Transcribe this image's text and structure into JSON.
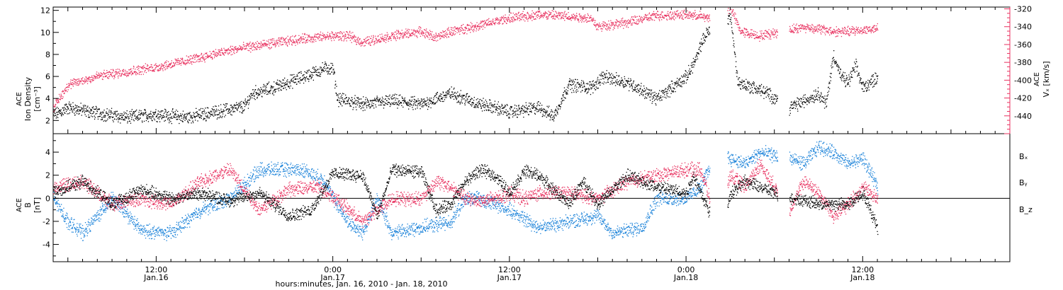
{
  "colors": {
    "black": "#000000",
    "pink": "#e8315f",
    "blue": "#1a82d9"
  },
  "chart_data": [
    {
      "type": "scatter",
      "panel": "top",
      "ylabel_left": [
        "ACE",
        "Ion Density",
        "[cm⁻³]"
      ],
      "ylabel_right": [
        "ACE",
        "Vₓ [km/s]"
      ],
      "ylim_left": [
        0.8,
        12.3
      ],
      "yticks_left": [
        2,
        4,
        6,
        8,
        10,
        12
      ],
      "ylim_right": [
        -460,
        -318
      ],
      "yticks_right": [
        -440,
        -420,
        -400,
        -380,
        -360,
        -340,
        -320
      ],
      "xlim_hours": [
        5,
        70
      ],
      "gaps_hours": [
        [
          49.6,
          50.8
        ],
        [
          54.2,
          55.0
        ]
      ],
      "series": [
        {
          "name": "Ion Density",
          "axis": "left",
          "color": "#000000",
          "x": [
            5,
            6,
            8,
            10,
            12,
            14,
            16,
            18,
            18.5,
            20,
            22,
            23.5,
            24,
            24.3,
            26,
            28,
            30,
            32,
            34,
            35,
            36,
            38,
            39,
            40,
            41.5,
            42,
            42.2,
            44,
            46,
            47,
            48,
            48.8,
            49,
            49.4,
            51,
            51.5,
            53,
            53.5,
            55,
            56,
            57,
            57.5,
            58,
            58.5,
            59,
            59.5,
            60,
            61
          ],
          "y": [
            2.5,
            3.2,
            2.7,
            2.3,
            2.6,
            2.3,
            2.8,
            3.3,
            4.5,
            5.0,
            6.0,
            6.8,
            6.7,
            4.0,
            3.5,
            3.8,
            3.5,
            4.5,
            3.5,
            3.2,
            2.8,
            3.2,
            2.4,
            5.3,
            5.0,
            5.5,
            6.0,
            5.5,
            4.0,
            5.0,
            6.0,
            8.0,
            9.0,
            10.0,
            11.5,
            5.5,
            4.8,
            4.5,
            3.2,
            3.8,
            4.5,
            3.5,
            8.0,
            6.0,
            5.5,
            7.0,
            5.0,
            6.0
          ]
        },
        {
          "name": "Vx",
          "axis": "right",
          "color": "#e8315f",
          "x": [
            5,
            6,
            8,
            10,
            12,
            14,
            16,
            18,
            20,
            22,
            24,
            25,
            26,
            28,
            30,
            31,
            32,
            34,
            36,
            38,
            40,
            41.5,
            42,
            42.5,
            44,
            46,
            48,
            49,
            49.4,
            51,
            51.3,
            51.7,
            53,
            55,
            56,
            57,
            58,
            59,
            60,
            61
          ],
          "y": [
            -430,
            -405,
            -395,
            -390,
            -385,
            -378,
            -370,
            -363,
            -358,
            -353,
            -350,
            -350,
            -357,
            -350,
            -345,
            -352,
            -345,
            -338,
            -330,
            -326,
            -328,
            -330,
            -340,
            -338,
            -335,
            -327,
            -326,
            -328,
            -330,
            -318,
            -330,
            -345,
            -350,
            -343,
            -340,
            -342,
            -345,
            -345,
            -343,
            -342
          ]
        }
      ]
    },
    {
      "type": "scatter",
      "panel": "bottom",
      "ylabel_left": [
        "ACE",
        "B",
        "[nT]"
      ],
      "ylim": [
        -5.5,
        5.6
      ],
      "yticks": [
        -4,
        -2,
        0,
        2,
        4
      ],
      "zero_line": 0,
      "xlim_hours": [
        5,
        70
      ],
      "legend": [
        "Bₓ",
        "Bᵧ",
        "B_z"
      ],
      "xticks": [
        "12:00",
        "0:00",
        "12:00",
        "0:00",
        "12:00"
      ],
      "xtick_dates": [
        "Jan.16",
        "Jan.17",
        "Jan.17",
        "Jan.18",
        "Jan.18"
      ],
      "xtick_hours": [
        12,
        24,
        36,
        48,
        60
      ],
      "xlabel": "hours:minutes, Jan. 16, 2010 - Jan. 18, 2010",
      "series": [
        {
          "name": "Bx",
          "color": "#000000",
          "x": [
            5,
            7,
            9,
            11,
            13,
            15,
            17,
            19,
            21,
            22.5,
            24,
            26,
            27,
            28,
            30,
            31,
            32,
            33,
            34,
            35,
            36,
            37,
            38,
            40,
            41,
            42,
            44,
            46,
            48,
            48.5,
            49.5,
            50.5,
            51,
            52,
            53,
            54,
            55,
            55.5,
            57,
            59,
            60,
            61
          ],
          "y": [
            0.5,
            1.5,
            -0.5,
            0.8,
            0.0,
            0.5,
            -0.2,
            0.5,
            -1.5,
            -1.0,
            2.2,
            2.0,
            -1.5,
            2.5,
            2.3,
            -1.0,
            -0.5,
            1.5,
            2.5,
            2.0,
            0.5,
            2.4,
            2.0,
            -0.5,
            1.5,
            -0.5,
            2.0,
            1.0,
            0.5,
            2.0,
            -1.0,
            -3.0,
            0.5,
            1.5,
            1.0,
            0.5,
            0.0,
            0.0,
            -0.5,
            -0.5,
            0.5,
            -2.5
          ]
        },
        {
          "name": "By",
          "color": "#1a82d9",
          "x": [
            5,
            6,
            7,
            9,
            11,
            13,
            15,
            17,
            19,
            20,
            22,
            23.5,
            24,
            25,
            26,
            27,
            28,
            30,
            32,
            33,
            34,
            35,
            36,
            38,
            40,
            42,
            43,
            45,
            46,
            48,
            49,
            50,
            51,
            52,
            53,
            55,
            56,
            57,
            58,
            59,
            60,
            61
          ],
          "y": [
            0.0,
            -2.0,
            -3.0,
            0.0,
            -2.8,
            -3.0,
            -1.0,
            0.0,
            2.5,
            2.5,
            2.5,
            1.5,
            0.0,
            -2.0,
            -3.0,
            0.0,
            -3.0,
            -2.5,
            -2.0,
            0.0,
            0.0,
            -0.5,
            -1.0,
            -2.5,
            -2.0,
            -1.5,
            -3.0,
            -2.5,
            0.0,
            0.0,
            1.0,
            4.0,
            3.5,
            3.0,
            4.0,
            3.5,
            3.0,
            4.5,
            4.0,
            3.0,
            3.5,
            1.0
          ]
        },
        {
          "name": "Bz",
          "color": "#e8315f",
          "x": [
            5,
            7,
            9,
            11,
            13,
            15,
            17,
            19,
            21,
            23,
            24,
            26,
            28,
            30,
            31,
            32,
            33,
            34,
            35,
            36,
            37,
            38,
            40,
            42,
            44,
            46,
            48,
            49,
            50,
            51,
            52,
            53,
            55,
            56,
            57,
            58,
            59,
            60,
            61
          ],
          "y": [
            1.0,
            1.5,
            -0.5,
            0.0,
            -0.5,
            1.5,
            2.5,
            -1.0,
            0.8,
            1.0,
            0.2,
            -2.0,
            0.0,
            0.0,
            1.5,
            1.0,
            0.0,
            -0.2,
            0.0,
            0.5,
            0.0,
            0.5,
            0.5,
            0.0,
            1.5,
            2.0,
            2.5,
            2.5,
            -2.0,
            2.0,
            1.0,
            3.0,
            -1.0,
            1.5,
            0.5,
            -1.5,
            -0.5,
            1.0,
            0.0
          ]
        }
      ]
    }
  ]
}
